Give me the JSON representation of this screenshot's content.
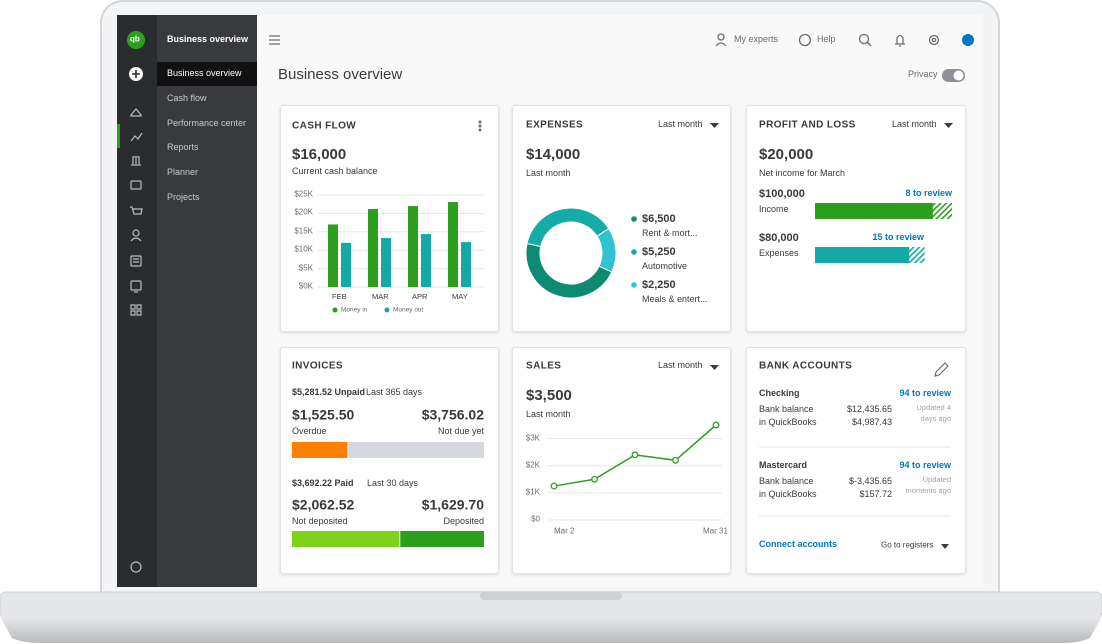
{
  "sidebar": {
    "logo": "qb",
    "header": "Business overview",
    "items": [
      "Business overview",
      "Cash flow",
      "Performance center",
      "Reports",
      "Planner",
      "Projects"
    ]
  },
  "topbar": {
    "my_experts": "My experts",
    "help": "Help"
  },
  "page_title": "Business overview",
  "privacy": "Privacy",
  "cash_flow": {
    "title": "CASH FLOW",
    "amount": "$16,000",
    "caption": "Current cash balance",
    "chart": {
      "type": "bar",
      "categories": [
        "FEB",
        "MAR",
        "APR",
        "MAY"
      ],
      "series": [
        {
          "name": "Money in",
          "color": "#2ca01c",
          "values": [
            17,
            21.2,
            22,
            23.1
          ]
        },
        {
          "name": "Money out",
          "color": "#13a9a6",
          "values": [
            12,
            13.3,
            14.4,
            12.2
          ]
        }
      ],
      "ylim": [
        0,
        25
      ],
      "yticks": [
        {
          "value": 0,
          "label": "$0K"
        },
        {
          "value": 5,
          "label": "$5K"
        },
        {
          "value": 10,
          "label": "$10K"
        },
        {
          "value": 15,
          "label": "$15K"
        },
        {
          "value": 20,
          "label": "$20K"
        },
        {
          "value": 25,
          "label": "$25K"
        }
      ],
      "grid": true
    }
  },
  "expenses": {
    "title": "EXPENSES",
    "period": "Last month",
    "amount": "$14,000",
    "caption": "Last month",
    "chart": {
      "type": "donut",
      "categories": [
        "Rent & mort...",
        "Automotive",
        "Meals & entert..."
      ],
      "values": [
        6500,
        5250,
        2250
      ],
      "value_labels": [
        "$6,500",
        "$5,250",
        "$2,250"
      ],
      "colors": [
        "#0e8a72",
        "#15aba8",
        "#2fc4cf"
      ]
    }
  },
  "profit_loss": {
    "title": "PROFIT AND LOSS",
    "period": "Last month",
    "amount": "$20,000",
    "caption": "Net income for March",
    "income": {
      "value": 100000,
      "label": "$100,000",
      "caption": "Income",
      "review": "8 to review",
      "color": "#2ca01c"
    },
    "expenses": {
      "value": 80000,
      "label": "$80,000",
      "caption": "Expenses",
      "review": "15 to review",
      "color": "#13a9a6"
    }
  },
  "invoices": {
    "title": "INVOICES",
    "unpaid": {
      "value": 5281.52,
      "label": "$5,281.52 Unpaid"
    },
    "unpaid_period": "Last 365 days",
    "overdue": {
      "value": 1525.5,
      "label": "$1,525.50",
      "caption": "Overdue",
      "color": "#ff8000"
    },
    "not_due": {
      "value": 3756.02,
      "label": "$3,756.02",
      "caption": "Not due yet",
      "color": "#d4d7dc"
    },
    "paid": {
      "value": 3692.22,
      "label": "$3,692.22 Paid"
    },
    "paid_period": "Last 30 days",
    "not_deposited": {
      "value": 2062.52,
      "label": "$2,062.52",
      "caption": "Not deposited",
      "color": "#7fd11b"
    },
    "deposited": {
      "value": 1629.7,
      "label": "$1,629.70",
      "caption": "Deposited",
      "color": "#2ca01c"
    }
  },
  "sales": {
    "title": "SALES",
    "period": "Last month",
    "amount": "$3,500",
    "caption": "Last month",
    "chart": {
      "type": "line",
      "categories": [
        "Mar 2",
        null,
        null,
        null,
        "Mar 31"
      ],
      "values": [
        1.25,
        1.5,
        2.4,
        2.2,
        3.5
      ],
      "color": "#2ca01c",
      "ylim": [
        0,
        3.5
      ],
      "yticks": [
        {
          "value": 0,
          "label": "$0"
        },
        {
          "value": 1,
          "label": "$1K"
        },
        {
          "value": 2,
          "label": "$2K"
        },
        {
          "value": 3,
          "label": "$3K"
        }
      ],
      "grid": true
    }
  },
  "bank_accounts": {
    "title": "BANK ACCOUNTS",
    "accounts": [
      {
        "name": "Checking",
        "review": "94 to review",
        "rows": [
          [
            "Bank balance",
            "$12,435.65"
          ],
          [
            "in QuickBooks",
            "$4,987.43"
          ]
        ],
        "updated": [
          "Updated 4",
          "days ago"
        ]
      },
      {
        "name": "Mastercard",
        "review": "94 to review",
        "rows": [
          [
            "Bank balance",
            "$-3,435.65"
          ],
          [
            "in QuickBooks",
            "$157.72"
          ]
        ],
        "updated": [
          "Updated",
          "moments ago"
        ]
      }
    ],
    "connect": "Connect accounts",
    "registers": "Go to registers"
  }
}
